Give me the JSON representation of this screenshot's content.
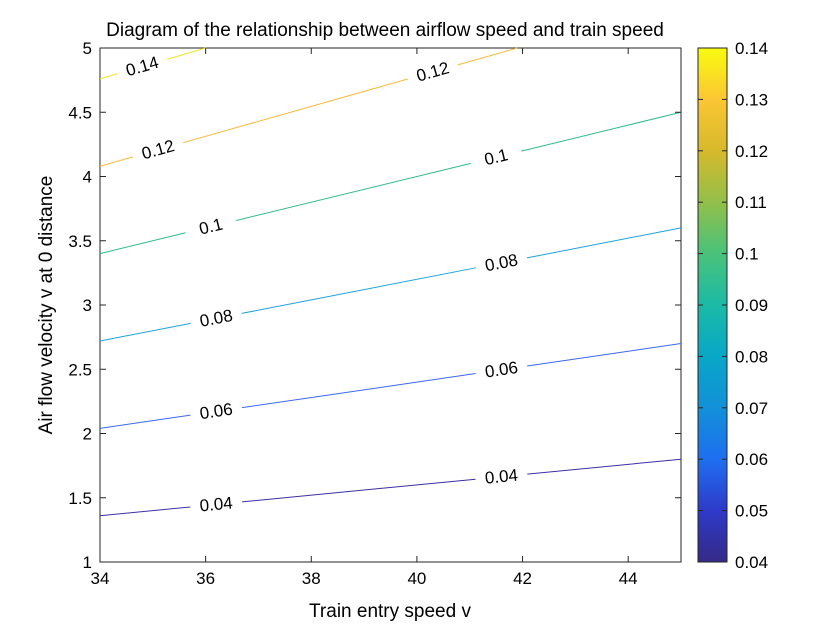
{
  "chart_data": {
    "type": "contour",
    "title": "Diagram of the relationship between airflow speed and train speed",
    "xlabel": "Train entry speed v",
    "ylabel": "Air flow velocity v at 0 distance",
    "xlim": [
      34,
      45
    ],
    "ylim": [
      1,
      5
    ],
    "x_ticks": [
      34,
      36,
      38,
      40,
      42,
      44
    ],
    "y_ticks": [
      1,
      1.5,
      2,
      2.5,
      3,
      3.5,
      4,
      4.5,
      5
    ],
    "colorbar": {
      "limits": [
        0.04,
        0.14
      ],
      "ticks": [
        0.04,
        0.05,
        0.06,
        0.07,
        0.08,
        0.09,
        0.1,
        0.11,
        0.12,
        0.13,
        0.14
      ],
      "colormap": "parula"
    },
    "grid": false,
    "contours": [
      {
        "level": 0.04,
        "label": "0.04",
        "color": "#3a2fa3",
        "points": [
          [
            34,
            1.36
          ],
          [
            45,
            1.8
          ]
        ],
        "labels": [
          {
            "x": 36.2,
            "text": "0.04"
          },
          {
            "x": 41.6,
            "text": "0.04"
          }
        ]
      },
      {
        "level": 0.06,
        "label": "0.06",
        "color": "#3b68ee",
        "points": [
          [
            34,
            2.04
          ],
          [
            45,
            2.7
          ]
        ],
        "labels": [
          {
            "x": 36.2,
            "text": "0.06"
          },
          {
            "x": 41.6,
            "text": "0.06"
          }
        ]
      },
      {
        "level": 0.08,
        "label": "0.08",
        "color": "#1fa2db",
        "points": [
          [
            34,
            2.72
          ],
          [
            45,
            3.6
          ]
        ],
        "labels": [
          {
            "x": 36.2,
            "text": "0.08"
          },
          {
            "x": 41.6,
            "text": "0.08"
          }
        ]
      },
      {
        "level": 0.1,
        "label": "0.1",
        "color": "#32bb89",
        "points": [
          [
            34,
            3.4
          ],
          [
            45,
            4.5
          ]
        ],
        "labels": [
          {
            "x": 36.1,
            "text": "0.1"
          },
          {
            "x": 41.5,
            "text": "0.1"
          }
        ]
      },
      {
        "level": 0.12,
        "label": "0.12",
        "color": "#f7b93a",
        "points": [
          [
            34,
            4.08
          ],
          [
            41.9,
            5.0
          ]
        ],
        "labels": [
          {
            "x": 35.1,
            "text": "0.12"
          },
          {
            "x": 40.3,
            "text": "0.12"
          }
        ]
      },
      {
        "level": 0.14,
        "label": "0.14",
        "color": "#f4e327",
        "points": [
          [
            34,
            4.76
          ],
          [
            36.0,
            5.0
          ]
        ],
        "labels": [
          {
            "x": 34.8,
            "text": "0.14"
          }
        ]
      }
    ]
  }
}
